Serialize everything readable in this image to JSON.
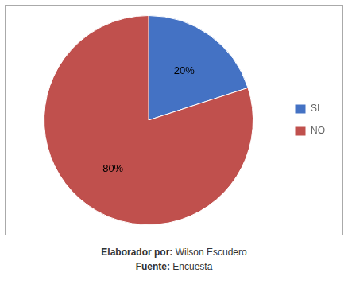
{
  "chart_data": {
    "type": "pie",
    "categories": [
      "SI",
      "NO"
    ],
    "values": [
      20,
      80
    ],
    "colors": [
      "#4472C4",
      "#C0504D"
    ],
    "data_labels": true,
    "value_labels": [
      "20%",
      "80%"
    ],
    "legend": "right",
    "annotations": [
      "Elaborador por: Wilson Escudero",
      "Fuente: Encuesta"
    ]
  }
}
